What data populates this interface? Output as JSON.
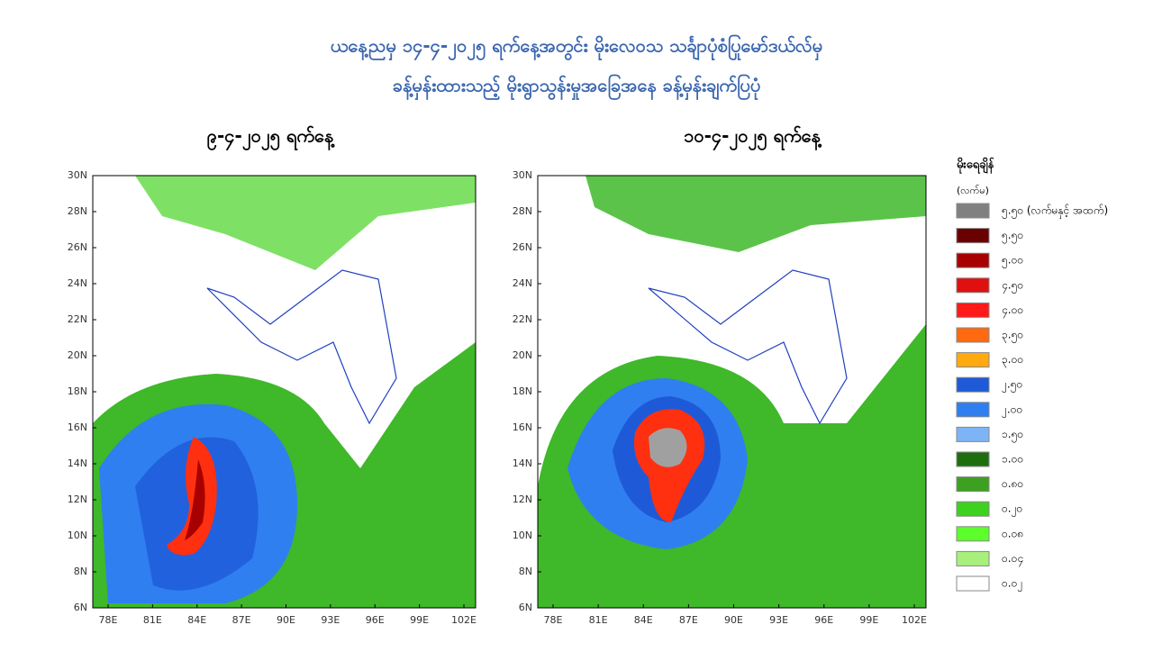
{
  "title_lines": [
    "ယနေ့ညမှ ၁၄-၄-၂၀၂၅ ရက်နေ့အတွင်း မိုးလေဝသ သင်္ချာပုံစံပြုမော်ဒယ်လ်မှ",
    "ခန့်မှန်းထားသည့် မိုးရွာသွန်းမှုအခြေအနေ ခန့်မှန်းချက်ပြပုံ"
  ],
  "maps": [
    {
      "title": "၉-၄-၂၀၂၅ ရက်နေ့"
    },
    {
      "title": "၁၀-၄-၂၀၂၅ ရက်နေ့"
    }
  ],
  "lat_labels": [
    "30N",
    "28N",
    "26N",
    "24N",
    "22N",
    "20N",
    "18N",
    "16N",
    "14N",
    "12N",
    "10N",
    "8N",
    "6N"
  ],
  "lon_labels": [
    "78E",
    "81E",
    "84E",
    "87E",
    "90E",
    "93E",
    "96E",
    "99E",
    "102E"
  ],
  "legend": {
    "title": "မိုးရေချိန်",
    "unit": "(လက်မ)",
    "items": [
      {
        "label": "၅.၅၀ (လက်မနှင့် အထက်)",
        "color": "#808080"
      },
      {
        "label": "၅.၅၀",
        "color": "#6b0000"
      },
      {
        "label": "၅.၀၀",
        "color": "#a80000"
      },
      {
        "label": "၄.၅၀",
        "color": "#e01010"
      },
      {
        "label": "၄.၀၀",
        "color": "#ff1a1a"
      },
      {
        "label": "၃.၅၀",
        "color": "#ff6a10"
      },
      {
        "label": "၃.၀၀",
        "color": "#ffaa10"
      },
      {
        "label": "၂.၅၀",
        "color": "#1e5ad8"
      },
      {
        "label": "၂.၀၀",
        "color": "#2f7ff0"
      },
      {
        "label": "၁.၅၀",
        "color": "#7eb4f6"
      },
      {
        "label": "၁.၀၀",
        "color": "#1e6e10"
      },
      {
        "label": "၀.၈၀",
        "color": "#3ea020"
      },
      {
        "label": "၀.၂၀",
        "color": "#3cd21e"
      },
      {
        "label": "၀.၀၈",
        "color": "#5cff2c"
      },
      {
        "label": "၀.၀၄",
        "color": "#a8f07c"
      },
      {
        "label": "၀.၀၂",
        "color": "#ffffff"
      }
    ]
  }
}
